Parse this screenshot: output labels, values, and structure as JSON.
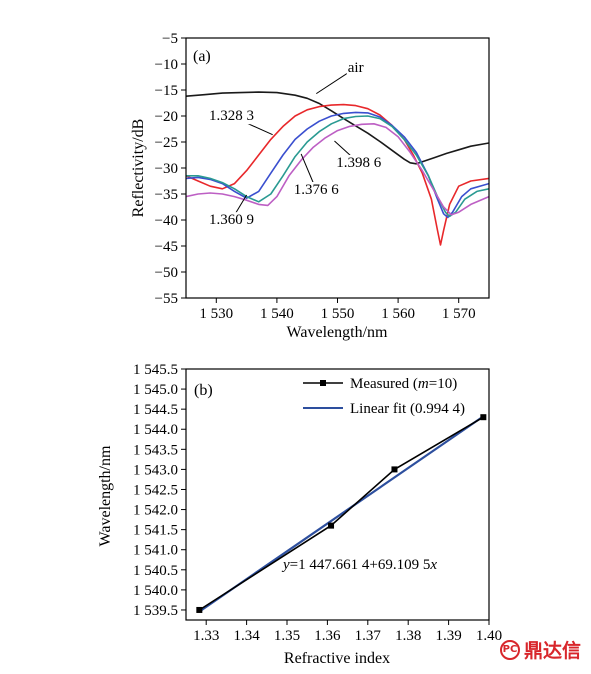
{
  "chart_data": [
    {
      "type": "line",
      "panel_label": "(a)",
      "xlabel": "Wavelength/nm",
      "ylabel": "Reflectivity/dB",
      "xlim": [
        1525,
        1575
      ],
      "ylim": [
        -55,
        -5
      ],
      "xticks": [
        1530,
        1540,
        1550,
        1560,
        1570
      ],
      "xtick_labels": [
        "1 530",
        "1 540",
        "1 550",
        "1 560",
        "1 570"
      ],
      "yticks": [
        -5,
        -10,
        -15,
        -20,
        -25,
        -30,
        -35,
        -40,
        -45,
        -50,
        -55
      ],
      "ytick_labels": [
        "−5",
        "−10",
        "−15",
        "−20",
        "−25",
        "−30",
        "−35",
        "−40",
        "−45",
        "−50",
        "−55"
      ],
      "grid": false,
      "series": [
        {
          "name": "air",
          "color": "#1a1a1a",
          "x": [
            1525,
            1528,
            1531,
            1534,
            1537,
            1540,
            1543,
            1545,
            1547,
            1549,
            1551,
            1553,
            1555,
            1557,
            1559,
            1561,
            1562,
            1563,
            1564,
            1566,
            1568,
            1570,
            1572,
            1575
          ],
          "y": [
            -16.2,
            -15.9,
            -15.6,
            -15.5,
            -15.4,
            -15.5,
            -16.0,
            -16.6,
            -17.6,
            -19.0,
            -20.5,
            -21.9,
            -23.3,
            -24.9,
            -26.6,
            -28.3,
            -29.0,
            -29.2,
            -28.8,
            -28.0,
            -27.2,
            -26.5,
            -25.8,
            -25.2
          ]
        },
        {
          "name": "1.328 3",
          "color": "#e8282b",
          "x": [
            1525,
            1527,
            1529,
            1531,
            1533,
            1535,
            1537,
            1539,
            1541,
            1543,
            1545,
            1547,
            1549,
            1551,
            1553,
            1555,
            1557,
            1559,
            1561,
            1562.5,
            1564,
            1565.5,
            1566.5,
            1567,
            1567.5,
            1568.5,
            1570,
            1572,
            1575
          ],
          "y": [
            -31.5,
            -32.5,
            -33.5,
            -34.0,
            -33.0,
            -30.5,
            -27.5,
            -24.5,
            -22.0,
            -20.0,
            -18.8,
            -18.2,
            -17.9,
            -17.8,
            -18.0,
            -18.6,
            -19.8,
            -21.8,
            -24.5,
            -27.5,
            -31.0,
            -36.0,
            -42.0,
            -44.8,
            -42.0,
            -37.0,
            -33.5,
            -32.5,
            -32.0
          ]
        },
        {
          "name": "1.360 9",
          "color": "#3a4fcf",
          "x": [
            1525,
            1527,
            1529,
            1531,
            1533,
            1535,
            1537,
            1539,
            1541,
            1543,
            1545,
            1547,
            1549,
            1551,
            1553,
            1555,
            1557,
            1559,
            1561,
            1563,
            1565,
            1566.5,
            1567.5,
            1568.2,
            1569,
            1570.5,
            1572,
            1575
          ],
          "y": [
            -32.0,
            -31.8,
            -32.2,
            -33.0,
            -34.5,
            -35.8,
            -34.5,
            -31.0,
            -27.5,
            -24.5,
            -22.5,
            -21.0,
            -20.0,
            -19.5,
            -19.3,
            -19.4,
            -20.2,
            -21.8,
            -24.0,
            -27.0,
            -31.5,
            -36.0,
            -38.8,
            -39.5,
            -38.5,
            -35.5,
            -34.0,
            -33.0
          ]
        },
        {
          "name": "1.376 6",
          "color": "#2a9a92",
          "x": [
            1525,
            1527,
            1529,
            1531,
            1533,
            1535,
            1537,
            1539,
            1541,
            1543,
            1545,
            1547,
            1549,
            1551,
            1553,
            1555,
            1557,
            1559,
            1561,
            1563,
            1565,
            1566.5,
            1567.8,
            1568.5,
            1569.5,
            1571,
            1573,
            1575
          ],
          "y": [
            -31.5,
            -31.5,
            -32.0,
            -32.8,
            -34.0,
            -35.5,
            -36.5,
            -35.0,
            -31.5,
            -27.8,
            -25.0,
            -23.0,
            -21.5,
            -20.5,
            -20.1,
            -20.0,
            -20.5,
            -22.0,
            -24.5,
            -27.5,
            -31.5,
            -35.5,
            -38.5,
            -39.3,
            -38.5,
            -36.0,
            -34.5,
            -34.0
          ]
        },
        {
          "name": "1.398 6",
          "color": "#bd5fc4",
          "x": [
            1525,
            1527,
            1529,
            1531,
            1533,
            1535,
            1537,
            1538.5,
            1540,
            1542,
            1544,
            1546,
            1548,
            1550,
            1552,
            1554,
            1556,
            1558,
            1560,
            1562,
            1564,
            1566,
            1567.5,
            1568.8,
            1570,
            1572,
            1575
          ],
          "y": [
            -35.5,
            -35.0,
            -34.8,
            -35.0,
            -35.5,
            -36.2,
            -37.0,
            -37.2,
            -35.5,
            -31.5,
            -28.5,
            -26.0,
            -24.2,
            -22.8,
            -22.0,
            -21.6,
            -21.5,
            -22.2,
            -24.0,
            -27.0,
            -30.5,
            -34.5,
            -37.5,
            -39.0,
            -38.5,
            -37.0,
            -35.5
          ]
        }
      ],
      "annotations": [
        {
          "text": "air",
          "series": "air",
          "x": 1553,
          "y": -11.5,
          "ax": 1546.5,
          "ay": -15.7
        },
        {
          "text": "1.328 3",
          "series": "1.328 3",
          "x": 1532.5,
          "y": -20.8,
          "ax": 1539.3,
          "ay": -23.6
        },
        {
          "text": "1.398 6",
          "series": "1.398 6",
          "x": 1553.5,
          "y": -29.8,
          "ax": 1549.5,
          "ay": -24.8
        },
        {
          "text": "1.376 6",
          "series": "1.376 6",
          "x": 1546.5,
          "y": -35.0,
          "ax": 1544.0,
          "ay": -27.3
        },
        {
          "text": "1.360 9",
          "series": "1.360 9",
          "x": 1532.5,
          "y": -40.8,
          "ax": 1535.0,
          "ay": -35.2
        }
      ]
    },
    {
      "type": "line",
      "panel_label": "(b)",
      "xlabel": "Refractive index",
      "ylabel": "Wavelength/nm",
      "xlim": [
        1.325,
        1.4
      ],
      "ylim": [
        1539.25,
        1545.5
      ],
      "xticks": [
        1.33,
        1.34,
        1.35,
        1.36,
        1.37,
        1.38,
        1.39,
        1.4
      ],
      "xtick_labels": [
        "1.33",
        "1.34",
        "1.35",
        "1.36",
        "1.37",
        "1.38",
        "1.39",
        "1.40"
      ],
      "yticks": [
        1539.5,
        1540.0,
        1540.5,
        1541.0,
        1541.5,
        1542.0,
        1542.5,
        1543.0,
        1543.5,
        1544.0,
        1544.5,
        1545.0,
        1545.5
      ],
      "ytick_labels": [
        "1 539.5",
        "1 540.0",
        "1 540.5",
        "1 541.0",
        "1 541.5",
        "1 542.0",
        "1 542.5",
        "1 543.0",
        "1 543.5",
        "1 544.0",
        "1 544.5",
        "1 545.0",
        "1 545.5"
      ],
      "grid": false,
      "legend_position": "top-right",
      "series": [
        {
          "name": "Measured (m=10)",
          "color": "#000000",
          "marker": "square",
          "x": [
            1.3283,
            1.3609,
            1.3766,
            1.3986
          ],
          "y": [
            1539.5,
            1541.6,
            1543.0,
            1544.3
          ]
        },
        {
          "name": "Linear fit (0.994 4)",
          "color": "#2d4f9e",
          "x": [
            1.3283,
            1.3986
          ],
          "y": [
            1539.46,
            1544.32
          ]
        }
      ],
      "legend": [
        {
          "pre": "Measured (",
          "italic": "m",
          "post": "=10)"
        },
        {
          "pre": "Linear fit (0.994 4)",
          "italic": "",
          "post": ""
        }
      ],
      "equation": {
        "italic": "y",
        "rest": "=1 447.661 4+69.109 5",
        "italic2": "x"
      }
    }
  ],
  "watermark": {
    "text": "鼎达信",
    "logo": "PC"
  }
}
